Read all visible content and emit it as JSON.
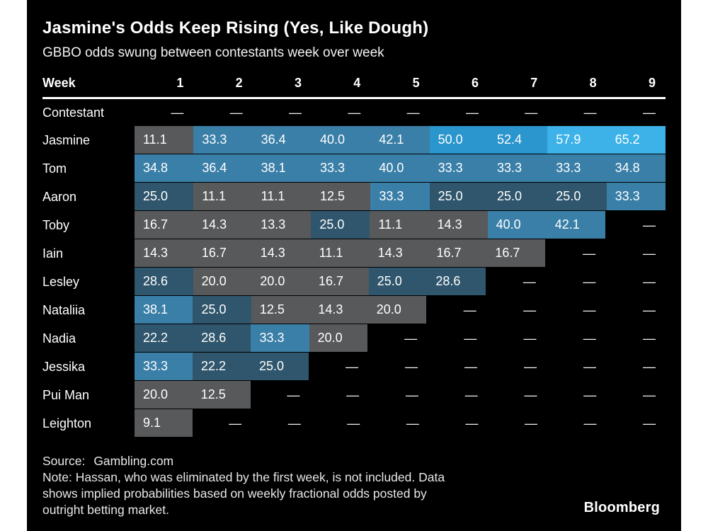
{
  "page": {
    "background_color": "#ffffff",
    "card_background_color": "#000000"
  },
  "header": {
    "title": "Jasmine's Odds Keep Rising (Yes, Like Dough)",
    "subtitle": "GBBO odds swung between contestants week over week"
  },
  "footer": {
    "source_label": "Source:",
    "source_value": "Gambling.com",
    "note_lines": [
      "Note: Hassan, who was eliminated by the first week, is not included. Data",
      "shows implied probabilities based on weekly fractional odds posted by",
      "outright betting market."
    ],
    "logo_text": "Bloomberg"
  },
  "chart_data": {
    "type": "heatmap",
    "title": "Jasmine's Odds Keep Rising (Yes, Like Dough)",
    "subtitle": "GBBO odds swung between contestants week over week",
    "week_header_label": "Week",
    "weeks": [
      "1",
      "2",
      "3",
      "4",
      "5",
      "6",
      "7",
      "8",
      "9"
    ],
    "contestant_row_label": "Contestant",
    "empty_symbol": "—",
    "value_text_color": "#ffffff",
    "rows": [
      {
        "name": "Jasmine",
        "values": [
          11.1,
          33.3,
          36.4,
          40.0,
          42.1,
          50.0,
          52.4,
          57.9,
          65.2
        ]
      },
      {
        "name": "Tom",
        "values": [
          34.8,
          36.4,
          38.1,
          33.3,
          40.0,
          33.3,
          33.3,
          33.3,
          34.8
        ]
      },
      {
        "name": "Aaron",
        "values": [
          25.0,
          11.1,
          11.1,
          12.5,
          33.3,
          25.0,
          25.0,
          25.0,
          33.3
        ]
      },
      {
        "name": "Toby",
        "values": [
          16.7,
          14.3,
          13.3,
          25.0,
          11.1,
          14.3,
          40.0,
          42.1,
          null
        ]
      },
      {
        "name": "Iain",
        "values": [
          14.3,
          16.7,
          14.3,
          11.1,
          14.3,
          16.7,
          16.7,
          null,
          null
        ]
      },
      {
        "name": "Lesley",
        "values": [
          28.6,
          20.0,
          20.0,
          16.7,
          25.0,
          28.6,
          null,
          null,
          null
        ]
      },
      {
        "name": "Nataliia",
        "values": [
          38.1,
          25.0,
          12.5,
          14.3,
          20.0,
          null,
          null,
          null,
          null
        ]
      },
      {
        "name": "Nadia",
        "values": [
          22.2,
          28.6,
          33.3,
          20.0,
          null,
          null,
          null,
          null,
          null
        ]
      },
      {
        "name": "Jessika",
        "values": [
          33.3,
          22.2,
          25.0,
          null,
          null,
          null,
          null,
          null,
          null
        ]
      },
      {
        "name": "Pui Man",
        "values": [
          20.0,
          12.5,
          null,
          null,
          null,
          null,
          null,
          null,
          null
        ]
      },
      {
        "name": "Leighton",
        "values": [
          9.1,
          null,
          null,
          null,
          null,
          null,
          null,
          null,
          null
        ]
      }
    ],
    "color_scale": [
      {
        "max": 20,
        "color": "#58595b"
      },
      {
        "max": 30,
        "color": "#2f566c"
      },
      {
        "max": 45,
        "color": "#3a7fa8"
      },
      {
        "max": 55,
        "color": "#2b95cd"
      },
      {
        "max": 100,
        "color": "#3cb2e9"
      }
    ]
  }
}
